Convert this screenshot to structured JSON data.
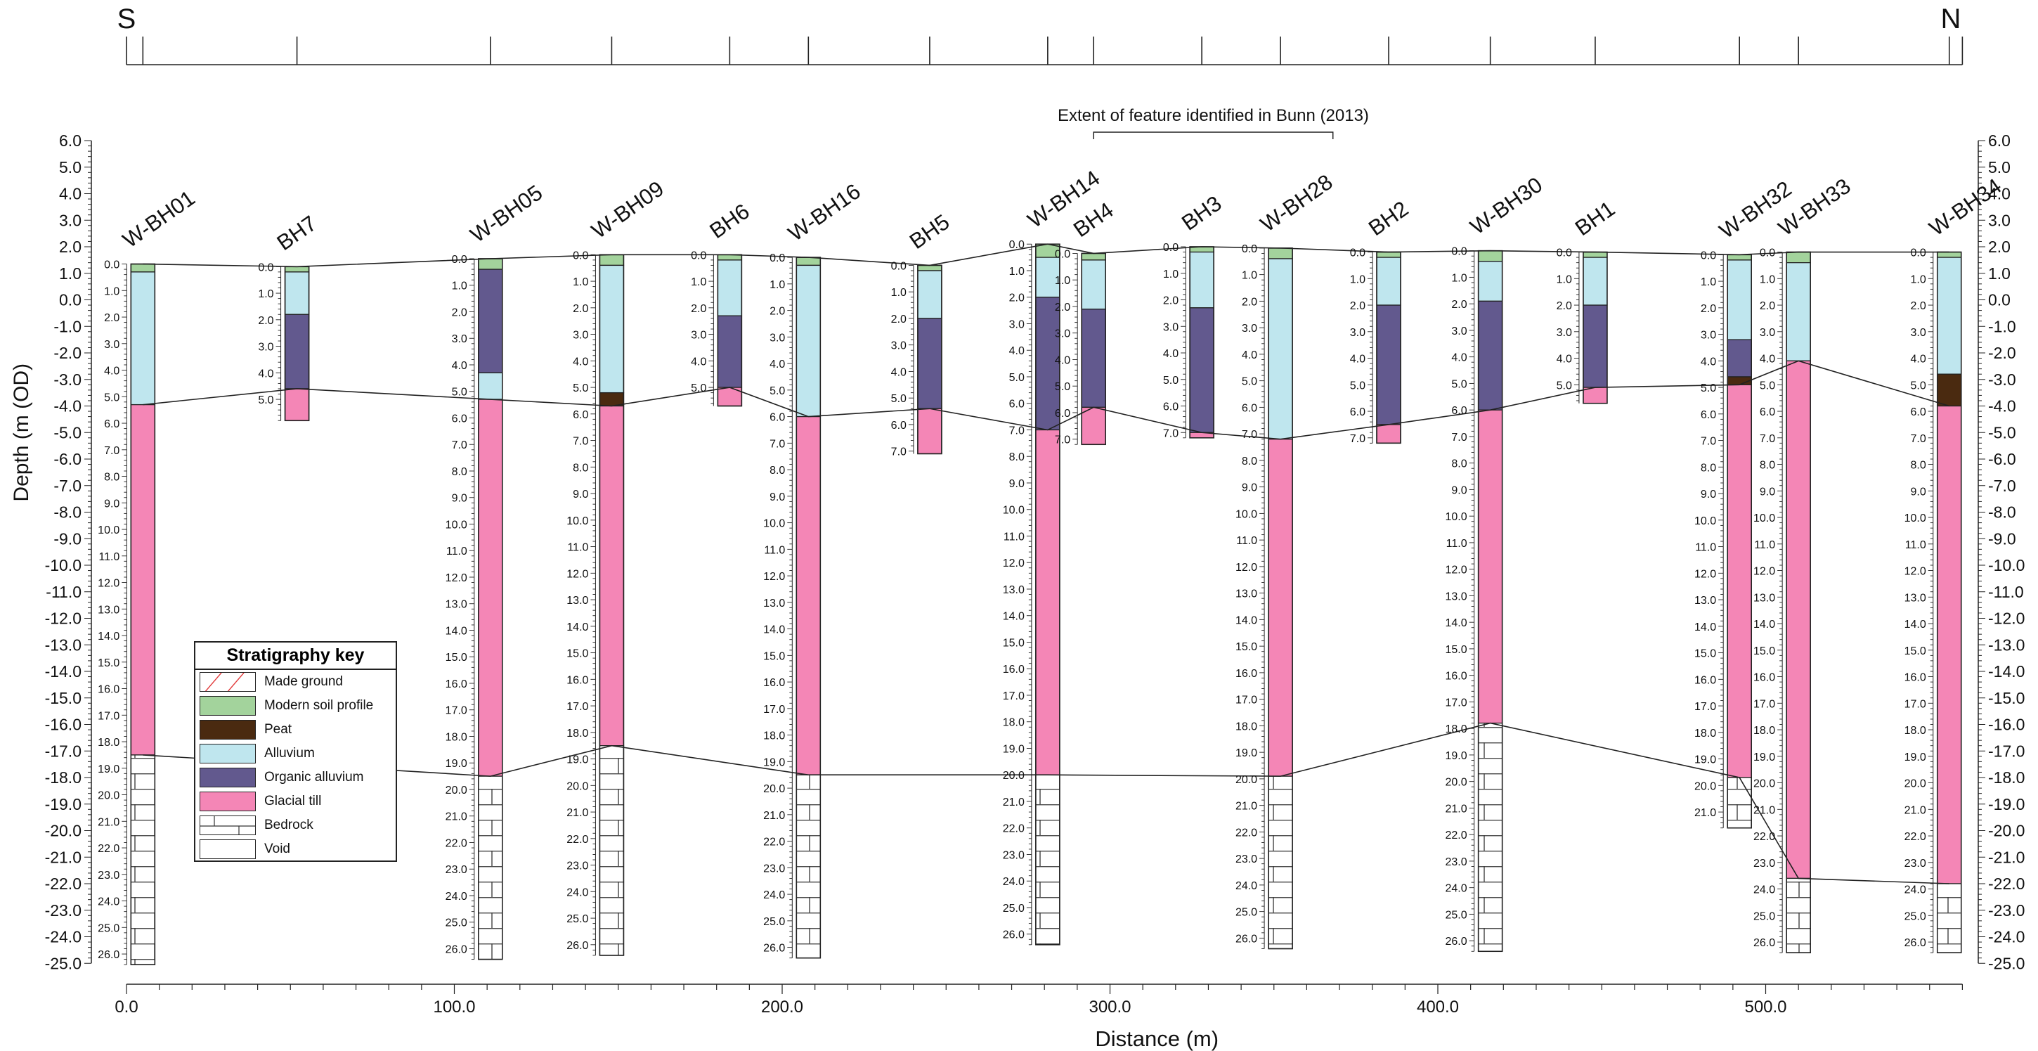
{
  "chart_data": {
    "type": "borehole cross-section",
    "direction_labels": [
      "S",
      "N"
    ],
    "xlabel": "Distance (m)",
    "ylabel": "Depth (m (OD)",
    "xlim": [
      0,
      560
    ],
    "ylim": [
      -25,
      6
    ],
    "x_ticks": [
      0,
      100,
      200,
      300,
      400,
      500
    ],
    "x_tick_labels": [
      "0.0",
      "100.0",
      "200.0",
      "300.0",
      "400.0",
      "500.0"
    ],
    "y_ticks": [
      6,
      5,
      4,
      3,
      2,
      1,
      0,
      -1,
      -2,
      -3,
      -4,
      -5,
      -6,
      -7,
      -8,
      -9,
      -10,
      -11,
      -12,
      -13,
      -14,
      -15,
      -16,
      -17,
      -18,
      -19,
      -20,
      -21,
      -22,
      -23,
      -24,
      -25
    ],
    "annotation": {
      "text": "Extent of feature identified in Bunn (2013)",
      "x_range": [
        295,
        368
      ]
    },
    "colors": {
      "modern_soil": "#a3d39c",
      "peat": "#4a2a10",
      "alluvium": "#bfe6ee",
      "organic_alluvium": "#62598e",
      "glacial_till": "#f486b6",
      "bedrock": "#ffffff",
      "void": "#ffffff",
      "made_ground": "#ffffff",
      "line": "#222222"
    },
    "key": {
      "title": "Stratigraphy key",
      "items": [
        {
          "label": "Made ground",
          "type": "made_ground"
        },
        {
          "label": "Modern soil profile",
          "type": "modern_soil"
        },
        {
          "label": "Peat",
          "type": "peat"
        },
        {
          "label": "Alluvium",
          "type": "alluvium"
        },
        {
          "label": "Organic alluvium",
          "type": "organic_alluvium"
        },
        {
          "label": "Glacial till",
          "type": "glacial_till"
        },
        {
          "label": "Bedrock",
          "type": "bedrock"
        },
        {
          "label": "Void",
          "type": "void"
        }
      ]
    },
    "boreholes": [
      {
        "name": "W-BH01",
        "x": 5,
        "top": 1.35,
        "scale_side": "left",
        "bottom": 26.4,
        "layers": [
          {
            "type": "modern_soil",
            "from": 0,
            "to": 0.3
          },
          {
            "type": "alluvium",
            "from": 0.3,
            "to": 5.3
          },
          {
            "type": "glacial_till",
            "from": 5.3,
            "to": 18.5
          },
          {
            "type": "bedrock",
            "from": 18.5,
            "to": 26.4
          }
        ]
      },
      {
        "name": "BH7",
        "x": 52,
        "top": 1.25,
        "scale_side": "left",
        "bottom": 5.8,
        "layers": [
          {
            "type": "modern_soil",
            "from": 0,
            "to": 0.2
          },
          {
            "type": "alluvium",
            "from": 0.2,
            "to": 1.8
          },
          {
            "type": "organic_alluvium",
            "from": 1.8,
            "to": 4.6
          },
          {
            "type": "glacial_till",
            "from": 4.6,
            "to": 5.8
          }
        ]
      },
      {
        "name": "W-BH05",
        "x": 111,
        "top": 1.55,
        "scale_side": "left",
        "bottom": 26.4,
        "layers": [
          {
            "type": "modern_soil",
            "from": 0,
            "to": 0.4
          },
          {
            "type": "organic_alluvium",
            "from": 0.4,
            "to": 4.3
          },
          {
            "type": "alluvium",
            "from": 4.3,
            "to": 5.3
          },
          {
            "type": "glacial_till",
            "from": 5.3,
            "to": 19.5
          },
          {
            "type": "bedrock",
            "from": 19.5,
            "to": 26.4
          }
        ]
      },
      {
        "name": "W-BH09",
        "x": 148,
        "top": 1.7,
        "scale_side": "left",
        "bottom": 26.4,
        "layers": [
          {
            "type": "modern_soil",
            "from": 0,
            "to": 0.4
          },
          {
            "type": "alluvium",
            "from": 0.4,
            "to": 5.2
          },
          {
            "type": "peat",
            "from": 5.2,
            "to": 5.7
          },
          {
            "type": "glacial_till",
            "from": 5.7,
            "to": 18.5
          },
          {
            "type": "bedrock",
            "from": 18.5,
            "to": 26.4
          }
        ]
      },
      {
        "name": "BH6",
        "x": 184,
        "top": 1.7,
        "scale_side": "left",
        "bottom": 5.7,
        "layers": [
          {
            "type": "modern_soil",
            "from": 0,
            "to": 0.2
          },
          {
            "type": "alluvium",
            "from": 0.2,
            "to": 2.3
          },
          {
            "type": "organic_alluvium",
            "from": 2.3,
            "to": 5.0
          },
          {
            "type": "glacial_till",
            "from": 5.0,
            "to": 5.7
          }
        ]
      },
      {
        "name": "W-BH16",
        "x": 208,
        "top": 1.6,
        "scale_side": "left",
        "bottom": 26.4,
        "layers": [
          {
            "type": "modern_soil",
            "from": 0,
            "to": 0.3
          },
          {
            "type": "alluvium",
            "from": 0.3,
            "to": 6.0
          },
          {
            "type": "glacial_till",
            "from": 6.0,
            "to": 19.5
          },
          {
            "type": "bedrock",
            "from": 19.5,
            "to": 26.4
          }
        ]
      },
      {
        "name": "BH5",
        "x": 245,
        "top": 1.3,
        "scale_side": "left",
        "bottom": 7.1,
        "layers": [
          {
            "type": "modern_soil",
            "from": 0,
            "to": 0.2
          },
          {
            "type": "alluvium",
            "from": 0.2,
            "to": 2.0
          },
          {
            "type": "organic_alluvium",
            "from": 2.0,
            "to": 5.4
          },
          {
            "type": "glacial_till",
            "from": 5.4,
            "to": 7.1
          }
        ]
      },
      {
        "name": "W-BH14",
        "x": 281,
        "top": 2.1,
        "scale_side": "left",
        "bottom": 26.4,
        "layers": [
          {
            "type": "modern_soil",
            "from": 0,
            "to": 0.5
          },
          {
            "type": "alluvium",
            "from": 0.5,
            "to": 2.0
          },
          {
            "type": "organic_alluvium",
            "from": 2.0,
            "to": 7.0
          },
          {
            "type": "glacial_till",
            "from": 7.0,
            "to": 20.0
          },
          {
            "type": "bedrock",
            "from": 20.0,
            "to": 26.4
          }
        ]
      },
      {
        "name": "BH4",
        "x": 295,
        "top": 1.75,
        "scale_side": "left",
        "bottom": 7.2,
        "layers": [
          {
            "type": "modern_soil",
            "from": 0,
            "to": 0.25
          },
          {
            "type": "alluvium",
            "from": 0.25,
            "to": 2.1
          },
          {
            "type": "organic_alluvium",
            "from": 2.1,
            "to": 5.8
          },
          {
            "type": "glacial_till",
            "from": 5.8,
            "to": 7.2
          }
        ]
      },
      {
        "name": "BH3",
        "x": 328,
        "top": 2.0,
        "scale_side": "left",
        "bottom": 7.2,
        "layers": [
          {
            "type": "modern_soil",
            "from": 0,
            "to": 0.2
          },
          {
            "type": "alluvium",
            "from": 0.2,
            "to": 2.3
          },
          {
            "type": "organic_alluvium",
            "from": 2.3,
            "to": 7.0
          },
          {
            "type": "glacial_till",
            "from": 7.0,
            "to": 7.2
          }
        ]
      },
      {
        "name": "W-BH28",
        "x": 352,
        "top": 1.95,
        "scale_side": "left",
        "bottom": 26.4,
        "layers": [
          {
            "type": "modern_soil",
            "from": 0,
            "to": 0.4
          },
          {
            "type": "alluvium",
            "from": 0.4,
            "to": 7.2
          },
          {
            "type": "glacial_till",
            "from": 7.2,
            "to": 19.9
          },
          {
            "type": "bedrock",
            "from": 19.9,
            "to": 26.4
          }
        ]
      },
      {
        "name": "BH2",
        "x": 385,
        "top": 1.8,
        "scale_side": "left",
        "bottom": 7.2,
        "layers": [
          {
            "type": "modern_soil",
            "from": 0,
            "to": 0.2
          },
          {
            "type": "alluvium",
            "from": 0.2,
            "to": 2.0
          },
          {
            "type": "organic_alluvium",
            "from": 2.0,
            "to": 6.5
          },
          {
            "type": "glacial_till",
            "from": 6.5,
            "to": 7.2
          }
        ]
      },
      {
        "name": "W-BH30",
        "x": 416,
        "top": 1.85,
        "scale_side": "left",
        "bottom": 26.4,
        "layers": [
          {
            "type": "modern_soil",
            "from": 0,
            "to": 0.4
          },
          {
            "type": "alluvium",
            "from": 0.4,
            "to": 1.9
          },
          {
            "type": "organic_alluvium",
            "from": 1.9,
            "to": 6.0
          },
          {
            "type": "glacial_till",
            "from": 6.0,
            "to": 17.8
          },
          {
            "type": "bedrock",
            "from": 17.8,
            "to": 26.4
          }
        ]
      },
      {
        "name": "BH1",
        "x": 448,
        "top": 1.8,
        "scale_side": "left",
        "bottom": 5.7,
        "layers": [
          {
            "type": "modern_soil",
            "from": 0,
            "to": 0.2
          },
          {
            "type": "alluvium",
            "from": 0.2,
            "to": 2.0
          },
          {
            "type": "organic_alluvium",
            "from": 2.0,
            "to": 5.1
          },
          {
            "type": "glacial_till",
            "from": 5.1,
            "to": 5.7
          }
        ]
      },
      {
        "name": "W-BH32",
        "x": 492,
        "top": 1.7,
        "scale_side": "left",
        "bottom": 21.6,
        "layers": [
          {
            "type": "modern_soil",
            "from": 0,
            "to": 0.2
          },
          {
            "type": "alluvium",
            "from": 0.2,
            "to": 3.2
          },
          {
            "type": "organic_alluvium",
            "from": 3.2,
            "to": 4.6
          },
          {
            "type": "peat",
            "from": 4.6,
            "to": 4.9
          },
          {
            "type": "glacial_till",
            "from": 4.9,
            "to": 19.7
          },
          {
            "type": "void",
            "from": 19.7,
            "to": 21.6
          }
        ]
      },
      {
        "name": "W-BH33",
        "x": 510,
        "top": 1.8,
        "scale_side": "left",
        "bottom": 26.4,
        "layers": [
          {
            "type": "modern_soil",
            "from": 0,
            "to": 0.4
          },
          {
            "type": "alluvium",
            "from": 0.4,
            "to": 4.1
          },
          {
            "type": "glacial_till",
            "from": 4.1,
            "to": 23.6
          },
          {
            "type": "bedrock",
            "from": 23.6,
            "to": 26.4
          }
        ]
      },
      {
        "name": "W-BH34",
        "x": 556,
        "top": 1.8,
        "scale_side": "left",
        "bottom": 26.4,
        "layers": [
          {
            "type": "modern_soil",
            "from": 0,
            "to": 0.2
          },
          {
            "type": "alluvium",
            "from": 0.2,
            "to": 4.6
          },
          {
            "type": "peat",
            "from": 4.6,
            "to": 5.8
          },
          {
            "type": "glacial_till",
            "from": 5.8,
            "to": 23.8
          },
          {
            "type": "bedrock",
            "from": 23.8,
            "to": 26.4
          }
        ]
      }
    ],
    "correlation_lines": [
      {
        "name": "ground surface",
        "points": [
          [
            5,
            1.35
          ],
          [
            52,
            1.25
          ],
          [
            111,
            1.55
          ],
          [
            148,
            1.7
          ],
          [
            184,
            1.7
          ],
          [
            208,
            1.6
          ],
          [
            245,
            1.3
          ],
          [
            281,
            2.1
          ],
          [
            295,
            1.75
          ],
          [
            328,
            2.0
          ],
          [
            352,
            1.95
          ],
          [
            385,
            1.8
          ],
          [
            416,
            1.85
          ],
          [
            448,
            1.8
          ],
          [
            492,
            1.7
          ],
          [
            510,
            1.8
          ],
          [
            556,
            1.8
          ]
        ]
      },
      {
        "name": "top of glacial till",
        "points": [
          [
            5,
            -3.95
          ],
          [
            52,
            -3.35
          ],
          [
            111,
            -3.75
          ],
          [
            148,
            -4.0
          ],
          [
            184,
            -3.3
          ],
          [
            208,
            -4.4
          ],
          [
            245,
            -4.1
          ],
          [
            281,
            -4.9
          ],
          [
            295,
            -4.05
          ],
          [
            328,
            -5.0
          ],
          [
            352,
            -5.25
          ],
          [
            385,
            -4.7
          ],
          [
            416,
            -4.15
          ],
          [
            448,
            -3.3
          ],
          [
            492,
            -3.2
          ],
          [
            510,
            -2.3
          ],
          [
            556,
            -4.0
          ]
        ]
      },
      {
        "name": "top of bedrock",
        "points": [
          [
            5,
            -17.15
          ],
          [
            111,
            -17.95
          ],
          [
            148,
            -16.8
          ],
          [
            208,
            -17.9
          ],
          [
            281,
            -17.9
          ],
          [
            352,
            -17.95
          ],
          [
            416,
            -15.95
          ],
          [
            492,
            -18.0
          ],
          [
            510,
            -21.8
          ],
          [
            556,
            -22.0
          ]
        ]
      }
    ]
  }
}
